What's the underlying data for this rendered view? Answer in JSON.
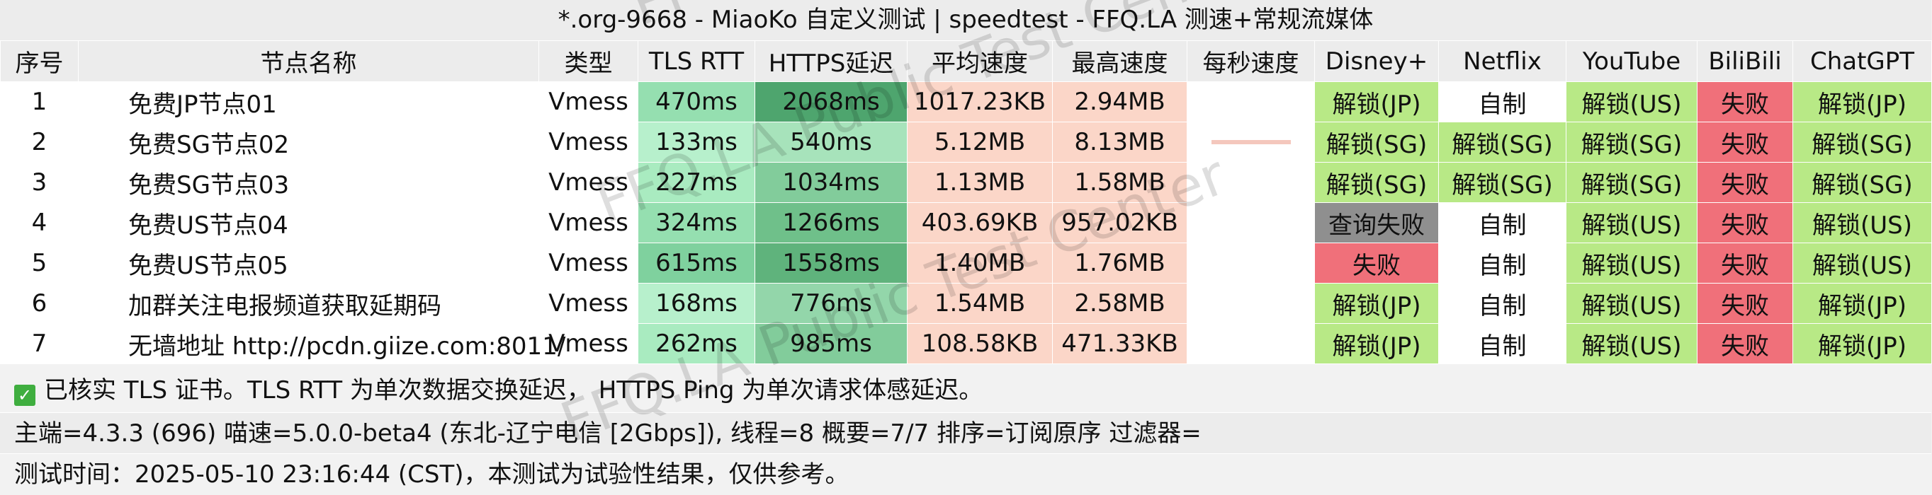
{
  "title": "*.org-9668 - MiaoKo 自定义测试 | speedtest - FFQ.LA 测速+常规流媒体",
  "watermark": "FFQ.LA Public Test Center",
  "watermark_top": "FFQ.LA",
  "headers": [
    "序号",
    "节点名称",
    "类型",
    "TLS RTT",
    "HTTPS延迟",
    "平均速度",
    "最高速度",
    "每秒速度",
    "Disney+",
    "Netflix",
    "YouTube",
    "BiliBili",
    "ChatGPT"
  ],
  "rows": [
    {
      "idx": "1",
      "name": "免费JP节点01",
      "type": "Vmess",
      "tls": "470ms",
      "https": "2068ms",
      "avg": "1017.23KB",
      "max": "2.94MB",
      "per_sec_fill": 0.0,
      "disney": "解锁(JP)",
      "netflix": "自制",
      "youtube": "解锁(US)",
      "bili": "失败",
      "chatgpt": "解锁(JP)"
    },
    {
      "idx": "2",
      "name": "免费SG节点02",
      "type": "Vmess",
      "tls": "133ms",
      "https": "540ms",
      "avg": "5.12MB",
      "max": "8.13MB",
      "per_sec_fill": 0.8,
      "disney": "解锁(SG)",
      "netflix": "解锁(SG)",
      "youtube": "解锁(SG)",
      "bili": "失败",
      "chatgpt": "解锁(SG)"
    },
    {
      "idx": "3",
      "name": "免费SG节点03",
      "type": "Vmess",
      "tls": "227ms",
      "https": "1034ms",
      "avg": "1.13MB",
      "max": "1.58MB",
      "per_sec_fill": 0.0,
      "disney": "解锁(SG)",
      "netflix": "解锁(SG)",
      "youtube": "解锁(SG)",
      "bili": "失败",
      "chatgpt": "解锁(SG)"
    },
    {
      "idx": "4",
      "name": "免费US节点04",
      "type": "Vmess",
      "tls": "324ms",
      "https": "1266ms",
      "avg": "403.69KB",
      "max": "957.02KB",
      "per_sec_fill": 0.0,
      "disney": "查询失败",
      "netflix": "自制",
      "youtube": "解锁(US)",
      "bili": "失败",
      "chatgpt": "解锁(US)"
    },
    {
      "idx": "5",
      "name": "免费US节点05",
      "type": "Vmess",
      "tls": "615ms",
      "https": "1558ms",
      "avg": "1.40MB",
      "max": "1.76MB",
      "per_sec_fill": 0.0,
      "disney": "失败",
      "netflix": "自制",
      "youtube": "解锁(US)",
      "bili": "失败",
      "chatgpt": "解锁(US)"
    },
    {
      "idx": "6",
      "name": "加群关注电报频道获取延期码",
      "type": "Vmess",
      "tls": "168ms",
      "https": "776ms",
      "avg": "1.54MB",
      "max": "2.58MB",
      "per_sec_fill": 0.0,
      "disney": "解锁(JP)",
      "netflix": "自制",
      "youtube": "解锁(US)",
      "bili": "失败",
      "chatgpt": "解锁(JP)"
    },
    {
      "idx": "7",
      "name": "无墙地址 http://pcdn.giize.com:8011/",
      "type": "Vmess",
      "tls": "262ms",
      "https": "985ms",
      "avg": "108.58KB",
      "max": "471.33KB",
      "per_sec_fill": 0.0,
      "disney": "解锁(JP)",
      "netflix": "自制",
      "youtube": "解锁(US)",
      "bili": "失败",
      "chatgpt": "解锁(JP)"
    }
  ],
  "footer": {
    "note1": "已核实 TLS 证书。TLS RTT 为单次数据交换延迟， HTTPS Ping 为单次请求体感延迟。",
    "note2": "主端=4.3.3 (696) 喵速=5.0.0-beta4 (东北-辽宁电信 [2Gbps]), 线程=8 概要=7/7 排序=订阅原序 过滤器=",
    "note3": "测试时间：2025-05-10 23:16:44 (CST)，本测试为试验性结果，仅供参考。"
  },
  "colors": {
    "unlock": "#b8e986",
    "fail": "#f0707a",
    "query_fail": "#8f8f8f",
    "self_made": "#ffffff",
    "speed": "#fbd6c8"
  }
}
